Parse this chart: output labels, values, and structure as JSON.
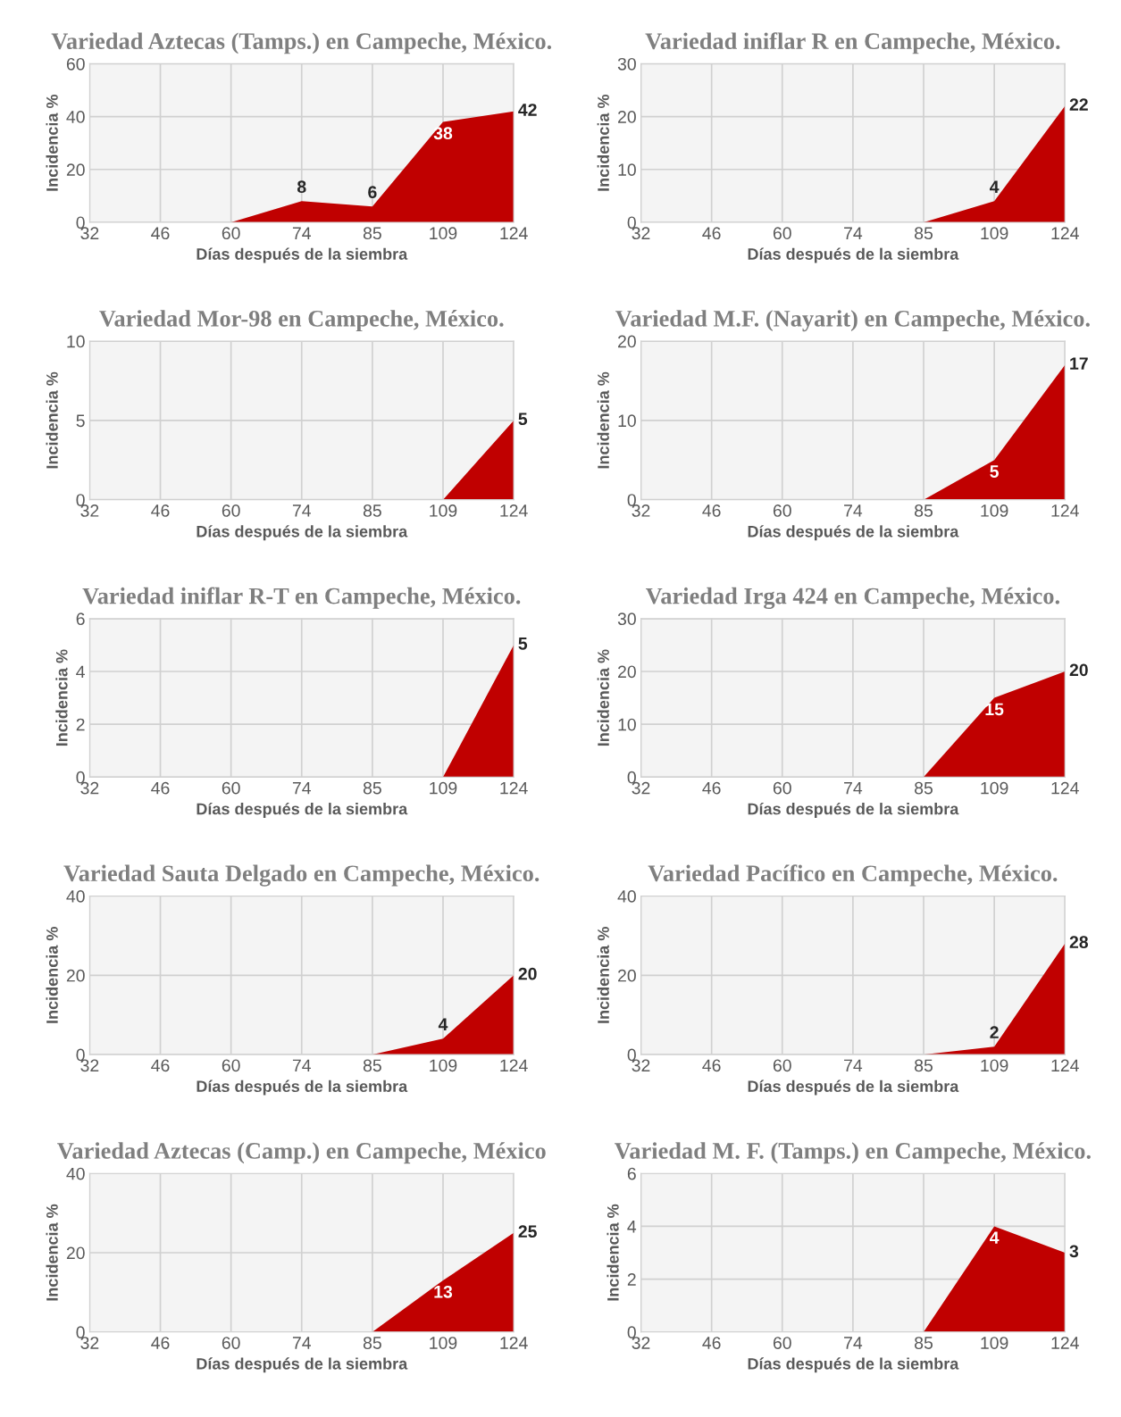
{
  "chart_data": [
    {
      "type": "area",
      "title": "Variedad Aztecas (Tamps.) en Campeche, México.",
      "xlabel": "Días después de la siembra",
      "ylabel": "Incidencia %",
      "categories": [
        "32",
        "46",
        "60",
        "74",
        "85",
        "109",
        "124"
      ],
      "series": [
        {
          "color": "#c00000",
          "values": [
            0,
            0,
            0,
            8,
            6,
            38,
            42
          ],
          "value_labels": [
            null,
            null,
            null,
            "8",
            "6",
            "38",
            "42"
          ]
        }
      ],
      "ylim": [
        0,
        60
      ],
      "yticks": [
        0,
        20,
        40,
        60
      ],
      "grid": true
    },
    {
      "type": "area",
      "title": "Variedad iniflar R en Campeche, México.",
      "xlabel": "Días después de la siembra",
      "ylabel": "Incidencia %",
      "categories": [
        "32",
        "46",
        "60",
        "74",
        "85",
        "109",
        "124"
      ],
      "series": [
        {
          "color": "#c00000",
          "values": [
            0,
            0,
            0,
            0,
            0,
            4,
            22
          ],
          "value_labels": [
            null,
            null,
            null,
            null,
            null,
            "4",
            "22"
          ]
        }
      ],
      "ylim": [
        0,
        30
      ],
      "yticks": [
        0,
        10,
        20,
        30
      ],
      "grid": true
    },
    {
      "type": "area",
      "title": "Variedad Mor-98 en Campeche, México.",
      "xlabel": "Días después de la siembra",
      "ylabel": "Incidencia %",
      "categories": [
        "32",
        "46",
        "60",
        "74",
        "85",
        "109",
        "124"
      ],
      "series": [
        {
          "color": "#c00000",
          "values": [
            0,
            0,
            0,
            0,
            0,
            0,
            5
          ],
          "value_labels": [
            null,
            null,
            null,
            null,
            null,
            null,
            "5"
          ]
        }
      ],
      "ylim": [
        0,
        10
      ],
      "yticks": [
        0,
        5,
        10
      ],
      "grid": true
    },
    {
      "type": "area",
      "title": "Variedad M.F. (Nayarit) en Campeche, México.",
      "xlabel": "Días después de la siembra",
      "ylabel": "Incidencia %",
      "categories": [
        "32",
        "46",
        "60",
        "74",
        "85",
        "109",
        "124"
      ],
      "series": [
        {
          "color": "#c00000",
          "values": [
            0,
            0,
            0,
            0,
            0,
            5,
            17
          ],
          "value_labels": [
            null,
            null,
            null,
            null,
            null,
            "5",
            "17"
          ]
        }
      ],
      "ylim": [
        0,
        20
      ],
      "yticks": [
        0,
        10,
        20
      ],
      "grid": true
    },
    {
      "type": "area",
      "title": "Variedad iniflar R-T en Campeche, México.",
      "xlabel": "Días después de la siembra",
      "ylabel": "Incidencia %",
      "categories": [
        "32",
        "46",
        "60",
        "74",
        "85",
        "109",
        "124"
      ],
      "series": [
        {
          "color": "#c00000",
          "values": [
            0,
            0,
            0,
            0,
            0,
            0,
            5
          ],
          "value_labels": [
            null,
            null,
            null,
            null,
            null,
            null,
            "5"
          ]
        }
      ],
      "ylim": [
        0,
        6
      ],
      "yticks": [
        0,
        2,
        4,
        6
      ],
      "grid": true
    },
    {
      "type": "area",
      "title": "Variedad Irga 424 en Campeche, México.",
      "xlabel": "Días después de la siembra",
      "ylabel": "Incidencia %",
      "categories": [
        "32",
        "46",
        "60",
        "74",
        "85",
        "109",
        "124"
      ],
      "series": [
        {
          "color": "#c00000",
          "values": [
            0,
            0,
            0,
            0,
            0,
            15,
            20
          ],
          "value_labels": [
            null,
            null,
            null,
            null,
            null,
            "15",
            "20"
          ]
        }
      ],
      "ylim": [
        0,
        30
      ],
      "yticks": [
        0,
        10,
        20,
        30
      ],
      "grid": true
    },
    {
      "type": "area",
      "title": "Variedad Sauta Delgado en Campeche, México.",
      "xlabel": "Días después de la siembra",
      "ylabel": "Incidencia %",
      "categories": [
        "32",
        "46",
        "60",
        "74",
        "85",
        "109",
        "124"
      ],
      "series": [
        {
          "color": "#c00000",
          "values": [
            0,
            0,
            0,
            0,
            0,
            4,
            20
          ],
          "value_labels": [
            null,
            null,
            null,
            null,
            null,
            "4",
            "20"
          ]
        }
      ],
      "ylim": [
        0,
        40
      ],
      "yticks": [
        0,
        20,
        40
      ],
      "grid": true
    },
    {
      "type": "area",
      "title": "Variedad Pacífico en Campeche, México.",
      "xlabel": "Días después de la siembra",
      "ylabel": "Incidencia %",
      "categories": [
        "32",
        "46",
        "60",
        "74",
        "85",
        "109",
        "124"
      ],
      "series": [
        {
          "color": "#c00000",
          "values": [
            0,
            0,
            0,
            0,
            0,
            2,
            28
          ],
          "value_labels": [
            null,
            null,
            null,
            null,
            null,
            "2",
            "28"
          ]
        }
      ],
      "ylim": [
        0,
        40
      ],
      "yticks": [
        0,
        20,
        40
      ],
      "grid": true
    },
    {
      "type": "area",
      "title": "Variedad Aztecas (Camp.) en Campeche, México",
      "xlabel": "Días después de la siembra",
      "ylabel": "Incidencia %",
      "categories": [
        "32",
        "46",
        "60",
        "74",
        "85",
        "109",
        "124"
      ],
      "series": [
        {
          "color": "#c00000",
          "values": [
            0,
            0,
            0,
            0,
            0,
            13,
            25
          ],
          "value_labels": [
            null,
            null,
            null,
            null,
            null,
            "13",
            "25"
          ]
        }
      ],
      "ylim": [
        0,
        40
      ],
      "yticks": [
        0,
        20,
        40
      ],
      "grid": true
    },
    {
      "type": "area",
      "title": "Variedad M. F. (Tamps.) en Campeche, México.",
      "xlabel": "Días después de la siembra",
      "ylabel": "Incidencia %",
      "categories": [
        "32",
        "46",
        "60",
        "74",
        "85",
        "109",
        "124"
      ],
      "series": [
        {
          "color": "#c00000",
          "values": [
            0,
            0,
            0,
            0,
            0,
            4,
            3
          ],
          "value_labels": [
            null,
            null,
            null,
            null,
            null,
            "4",
            "3"
          ]
        }
      ],
      "ylim": [
        0,
        6
      ],
      "yticks": [
        0,
        2,
        4,
        6
      ],
      "grid": true
    }
  ]
}
